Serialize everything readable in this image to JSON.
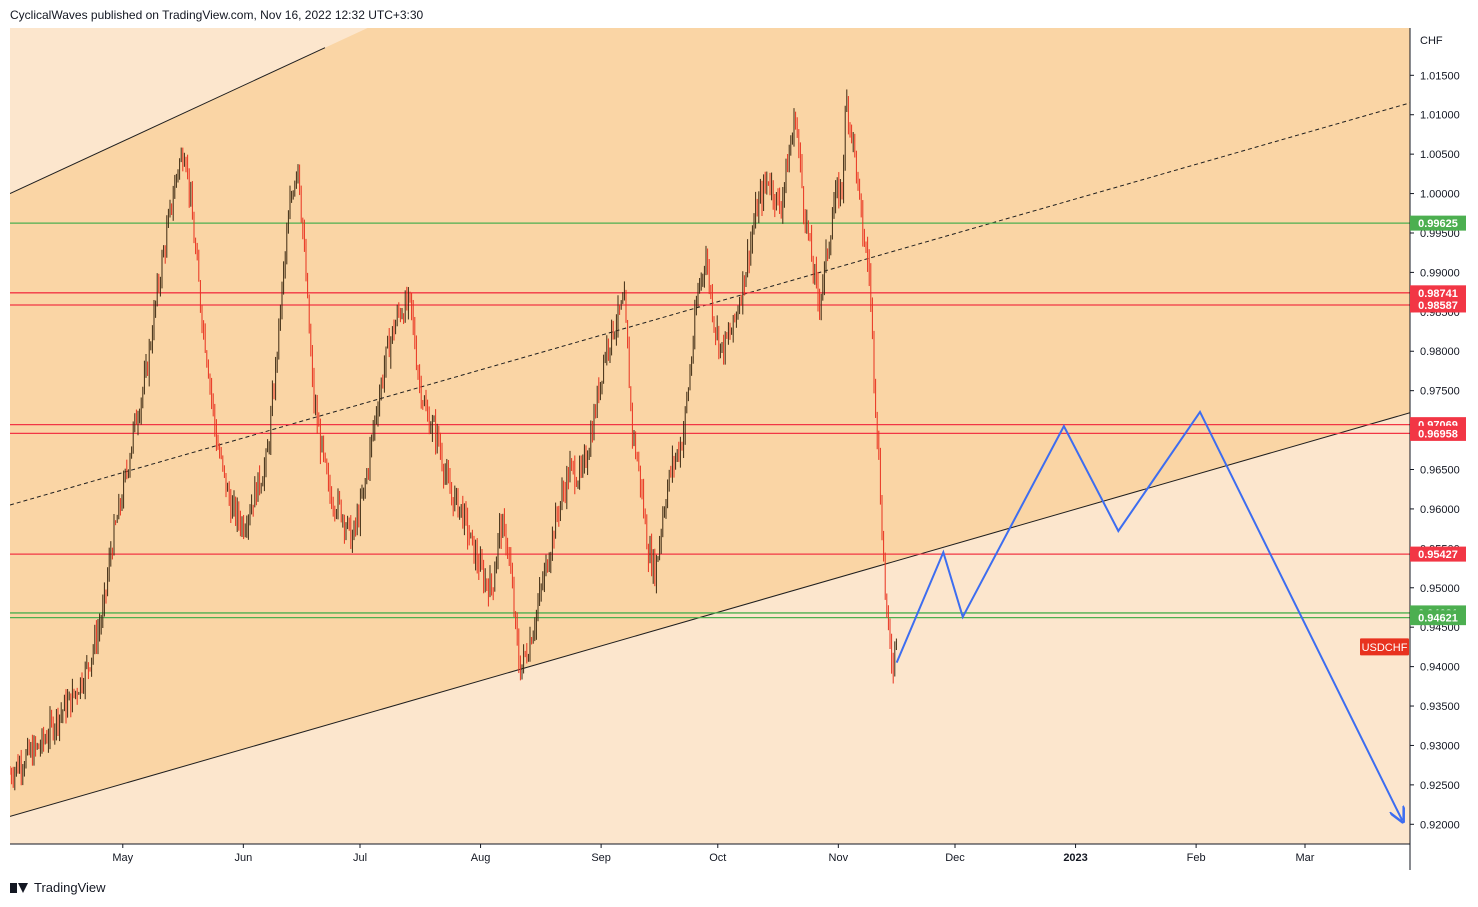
{
  "header": {
    "publisher_text": "CyclicalWaves published on TradingView.com, Nov 16, 2022 12:32 UTC+3:30"
  },
  "footer": {
    "brand": "TradingView"
  },
  "colors": {
    "channel_fill": "#fad5a5",
    "outer_fill": "#fce6cd",
    "candle_up": "#3d2a12",
    "candle_down": "#e8321f",
    "red_line": "#f23645",
    "green_line": "#4caf50",
    "projection": "#3d6df0",
    "channel_line": "#1f1f1f"
  },
  "chart_data": {
    "type": "line",
    "symbol": "USDCHF",
    "currency_label": "CHF",
    "ylim": [
      0.9175,
      1.021
    ],
    "y_ticks": [
      "1.01500",
      "1.01000",
      "1.00500",
      "1.00000",
      "0.99500",
      "0.99000",
      "0.98500",
      "0.98000",
      "0.97500",
      "0.97000",
      "0.96500",
      "0.96000",
      "0.95500",
      "0.95000",
      "0.94500",
      "0.94000",
      "0.93500",
      "0.93000",
      "0.92500",
      "0.92000"
    ],
    "y_tick_values": [
      1.015,
      1.01,
      1.005,
      1.0,
      0.995,
      0.99,
      0.985,
      0.98,
      0.975,
      0.97,
      0.965,
      0.96,
      0.955,
      0.95,
      0.945,
      0.94,
      0.935,
      0.93,
      0.925,
      0.92
    ],
    "x_ticks": [
      "May",
      "Jun",
      "Jul",
      "Aug",
      "Sep",
      "Oct",
      "Nov",
      "Dec",
      "2023",
      "Feb",
      "Mar"
    ],
    "x_tick_dates": [
      "2022-05-01",
      "2022-06-01",
      "2022-07-01",
      "2022-08-01",
      "2022-09-01",
      "2022-10-01",
      "2022-11-01",
      "2022-12-01",
      "2023-01-01",
      "2023-02-01",
      "2023-03-01"
    ],
    "x_range": [
      "2022-04-02",
      "2023-03-28"
    ],
    "price_path": [
      [
        "2022-04-02",
        0.9265
      ],
      [
        "2022-04-06",
        0.9285
      ],
      [
        "2022-04-10",
        0.93
      ],
      [
        "2022-04-14",
        0.9335
      ],
      [
        "2022-04-18",
        0.936
      ],
      [
        "2022-04-22",
        0.94
      ],
      [
        "2022-04-26",
        0.947
      ],
      [
        "2022-04-28",
        0.955
      ],
      [
        "2022-05-01",
        0.962
      ],
      [
        "2022-05-04",
        0.9705
      ],
      [
        "2022-05-07",
        0.977
      ],
      [
        "2022-05-10",
        0.988
      ],
      [
        "2022-05-13",
        0.997
      ],
      [
        "2022-05-15",
        1.003
      ],
      [
        "2022-05-17",
        1.006
      ],
      [
        "2022-05-19",
        0.996
      ],
      [
        "2022-05-21",
        0.986
      ],
      [
        "2022-05-23",
        0.978
      ],
      [
        "2022-05-25",
        0.969
      ],
      [
        "2022-05-27",
        0.964
      ],
      [
        "2022-05-29",
        0.96
      ],
      [
        "2022-06-01",
        0.958
      ],
      [
        "2022-06-04",
        0.962
      ],
      [
        "2022-06-07",
        0.966
      ],
      [
        "2022-06-09",
        0.976
      ],
      [
        "2022-06-11",
        0.988
      ],
      [
        "2022-06-13",
        0.9985
      ],
      [
        "2022-06-15",
        1.0045
      ],
      [
        "2022-06-17",
        0.99
      ],
      [
        "2022-06-19",
        0.974
      ],
      [
        "2022-06-21",
        0.968
      ],
      [
        "2022-06-23",
        0.962
      ],
      [
        "2022-06-26",
        0.96
      ],
      [
        "2022-06-29",
        0.956
      ],
      [
        "2022-07-02",
        0.962
      ],
      [
        "2022-07-05",
        0.972
      ],
      [
        "2022-07-08",
        0.98
      ],
      [
        "2022-07-11",
        0.985
      ],
      [
        "2022-07-14",
        0.986
      ],
      [
        "2022-07-16",
        0.977
      ],
      [
        "2022-07-18",
        0.972
      ],
      [
        "2022-07-21",
        0.969
      ],
      [
        "2022-07-24",
        0.962
      ],
      [
        "2022-07-27",
        0.96
      ],
      [
        "2022-07-30",
        0.955
      ],
      [
        "2022-08-02",
        0.951
      ],
      [
        "2022-08-04",
        0.95
      ],
      [
        "2022-08-06",
        0.958
      ],
      [
        "2022-08-08",
        0.9555
      ],
      [
        "2022-08-10",
        0.945
      ],
      [
        "2022-08-11",
        0.9395
      ],
      [
        "2022-08-13",
        0.942
      ],
      [
        "2022-08-15",
        0.946
      ],
      [
        "2022-08-18",
        0.953
      ],
      [
        "2022-08-21",
        0.96
      ],
      [
        "2022-08-24",
        0.965
      ],
      [
        "2022-08-27",
        0.964
      ],
      [
        "2022-08-30",
        0.971
      ],
      [
        "2022-09-02",
        0.98
      ],
      [
        "2022-09-05",
        0.984
      ],
      [
        "2022-09-07",
        0.986
      ],
      [
        "2022-09-09",
        0.97
      ],
      [
        "2022-09-11",
        0.964
      ],
      [
        "2022-09-13",
        0.955
      ],
      [
        "2022-09-15",
        0.952
      ],
      [
        "2022-09-17",
        0.96
      ],
      [
        "2022-09-19",
        0.965
      ],
      [
        "2022-09-22",
        0.969
      ],
      [
        "2022-09-24",
        0.978
      ],
      [
        "2022-09-26",
        0.988
      ],
      [
        "2022-09-28",
        0.992
      ],
      [
        "2022-09-30",
        0.984
      ],
      [
        "2022-10-02",
        0.98
      ],
      [
        "2022-10-05",
        0.983
      ],
      [
        "2022-10-08",
        0.99
      ],
      [
        "2022-10-11",
        0.998
      ],
      [
        "2022-10-14",
        1.002
      ],
      [
        "2022-10-17",
        0.998
      ],
      [
        "2022-10-19",
        1.004
      ],
      [
        "2022-10-21",
        1.01
      ],
      [
        "2022-10-23",
        0.999
      ],
      [
        "2022-10-25",
        0.992
      ],
      [
        "2022-10-27",
        0.986
      ],
      [
        "2022-10-29",
        0.992
      ],
      [
        "2022-10-31",
        0.999
      ],
      [
        "2022-11-02",
        1.001
      ],
      [
        "2022-11-03",
        1.012
      ],
      [
        "2022-11-05",
        1.006
      ],
      [
        "2022-11-07",
        0.996
      ],
      [
        "2022-11-09",
        0.99
      ],
      [
        "2022-11-10",
        0.979
      ],
      [
        "2022-11-11",
        0.97
      ],
      [
        "2022-11-12",
        0.96
      ],
      [
        "2022-11-13",
        0.95
      ],
      [
        "2022-11-14",
        0.943
      ],
      [
        "2022-11-15",
        0.94
      ],
      [
        "2022-11-16",
        0.945
      ]
    ],
    "projection_path": [
      [
        "2022-11-16",
        0.9405
      ],
      [
        "2022-11-28",
        0.9545
      ],
      [
        "2022-12-03",
        0.9463
      ],
      [
        "2022-12-29",
        0.9705
      ],
      [
        "2023-01-12",
        0.9572
      ],
      [
        "2023-02-02",
        0.9723
      ],
      [
        "2023-03-26",
        0.9205
      ]
    ],
    "channel": {
      "upper": [
        [
          "2022-04-02",
          1.0
        ],
        [
          "2022-06-22",
          1.0185
        ]
      ],
      "middle": [
        [
          "2022-04-02",
          0.9605
        ],
        [
          "2023-03-28",
          1.0115
        ]
      ],
      "lower": [
        [
          "2022-04-02",
          0.921
        ],
        [
          "2023-03-28",
          0.9722
        ]
      ]
    },
    "levels": [
      {
        "label": "0.99625",
        "value": 0.99625,
        "color": "green"
      },
      {
        "label": "0.98741",
        "value": 0.98741,
        "color": "red"
      },
      {
        "label": "0.98587",
        "value": 0.98587,
        "color": "red"
      },
      {
        "label": "0.97069",
        "value": 0.97069,
        "color": "red"
      },
      {
        "label": "0.96958",
        "value": 0.96958,
        "color": "red"
      },
      {
        "label": "0.95427",
        "value": 0.95427,
        "color": "red"
      },
      {
        "label": "0.94681",
        "value": 0.94681,
        "color": "green"
      },
      {
        "label": "0.94621",
        "value": 0.94621,
        "color": "green"
      }
    ],
    "last_price": 0.9425
  }
}
